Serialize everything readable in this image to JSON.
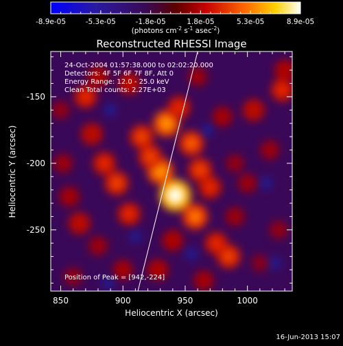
{
  "colorbar": {
    "tick_labels": [
      "-8.9e-05",
      "-5.3e-05",
      "-1.8e-05",
      "1.8e-05",
      "5.3e-05",
      "8.9e-05"
    ],
    "unit_label": "(photons cm",
    "unit_exp1": "-2",
    "unit_mid": " s",
    "unit_exp2": "-1",
    "unit_tail": " asec",
    "unit_exp3": "-2",
    "unit_close": ")",
    "range": [
      -8.9e-05,
      8.9e-05
    ]
  },
  "annotations": {
    "time_range": "24-Oct-2004 01:57:38.000 to 02:02:20.000",
    "detectors": "Detectors: 4F 5F 6F 7F 8F, Att 0",
    "energy": "Energy Range: 12.0 - 25.0 keV",
    "clean": "Clean     Total counts: 2.27E+03",
    "peak": "Position of Peak = [942,-224]"
  },
  "footer": {
    "date": "16-Jun-2013 15:07"
  },
  "chart_data": {
    "type": "heatmap",
    "title": "Reconstructed RHESSI Image",
    "xlabel": "Heliocentric X (arcsec)",
    "ylabel": "Heliocentric Y (arcsec)",
    "xlim": [
      842,
      1036
    ],
    "ylim": [
      -296,
      -116
    ],
    "x_ticks": [
      {
        "value": 850,
        "label": "850"
      },
      {
        "value": 900,
        "label": "900"
      },
      {
        "value": 950,
        "label": "950"
      },
      {
        "value": 1000,
        "label": "1000"
      }
    ],
    "y_ticks": [
      {
        "value": -150,
        "label": "-150"
      },
      {
        "value": -200,
        "label": "-200"
      },
      {
        "value": -250,
        "label": "-250"
      }
    ],
    "colormap": "RHESSI hot (blue-purple-red-orange-yellow-white)",
    "peak_position": [
      942,
      -224
    ],
    "limb_line": [
      [
        912,
        -296
      ],
      [
        960,
        -116
      ]
    ],
    "blobs": [
      {
        "x": 942,
        "y": -224,
        "value": 1.0
      },
      {
        "x": 930,
        "y": -206,
        "value": 0.75
      },
      {
        "x": 922,
        "y": -195,
        "value": 0.6
      },
      {
        "x": 915,
        "y": -180,
        "value": 0.6
      },
      {
        "x": 935,
        "y": -170,
        "value": 0.75
      },
      {
        "x": 945,
        "y": -158,
        "value": 0.55
      },
      {
        "x": 955,
        "y": -185,
        "value": 0.65
      },
      {
        "x": 962,
        "y": -205,
        "value": 0.6
      },
      {
        "x": 970,
        "y": -218,
        "value": 0.55
      },
      {
        "x": 958,
        "y": -240,
        "value": 0.7
      },
      {
        "x": 940,
        "y": -258,
        "value": 0.45
      },
      {
        "x": 905,
        "y": -238,
        "value": 0.55
      },
      {
        "x": 895,
        "y": -215,
        "value": 0.6
      },
      {
        "x": 885,
        "y": -200,
        "value": 0.55
      },
      {
        "x": 875,
        "y": -178,
        "value": 0.5
      },
      {
        "x": 870,
        "y": -150,
        "value": 0.55
      },
      {
        "x": 880,
        "y": -135,
        "value": 0.45
      },
      {
        "x": 905,
        "y": -140,
        "value": 0.5
      },
      {
        "x": 865,
        "y": -245,
        "value": 0.5
      },
      {
        "x": 857,
        "y": -225,
        "value": 0.4
      },
      {
        "x": 880,
        "y": -262,
        "value": 0.35
      },
      {
        "x": 900,
        "y": -280,
        "value": 0.4
      },
      {
        "x": 928,
        "y": -280,
        "value": 0.45
      },
      {
        "x": 975,
        "y": -260,
        "value": 0.55
      },
      {
        "x": 985,
        "y": -270,
        "value": 0.6
      },
      {
        "x": 990,
        "y": -240,
        "value": 0.35
      },
      {
        "x": 1000,
        "y": -215,
        "value": 0.35
      },
      {
        "x": 980,
        "y": -165,
        "value": 0.4
      },
      {
        "x": 1005,
        "y": -160,
        "value": 0.5
      },
      {
        "x": 1028,
        "y": -145,
        "value": 0.55
      },
      {
        "x": 1018,
        "y": -190,
        "value": 0.35
      },
      {
        "x": 1025,
        "y": -250,
        "value": 0.3
      },
      {
        "x": 1010,
        "y": -275,
        "value": 0.25
      },
      {
        "x": 960,
        "y": -135,
        "value": 0.35
      },
      {
        "x": 965,
        "y": -288,
        "value": 0.4
      },
      {
        "x": 1030,
        "y": -130,
        "value": 0.45
      },
      {
        "x": 852,
        "y": -200,
        "value": 0.35
      },
      {
        "x": 850,
        "y": -160,
        "value": 0.3
      },
      {
        "x": 860,
        "y": -285,
        "value": 0.3
      },
      {
        "x": 990,
        "y": -200,
        "value": 0.3
      }
    ]
  }
}
